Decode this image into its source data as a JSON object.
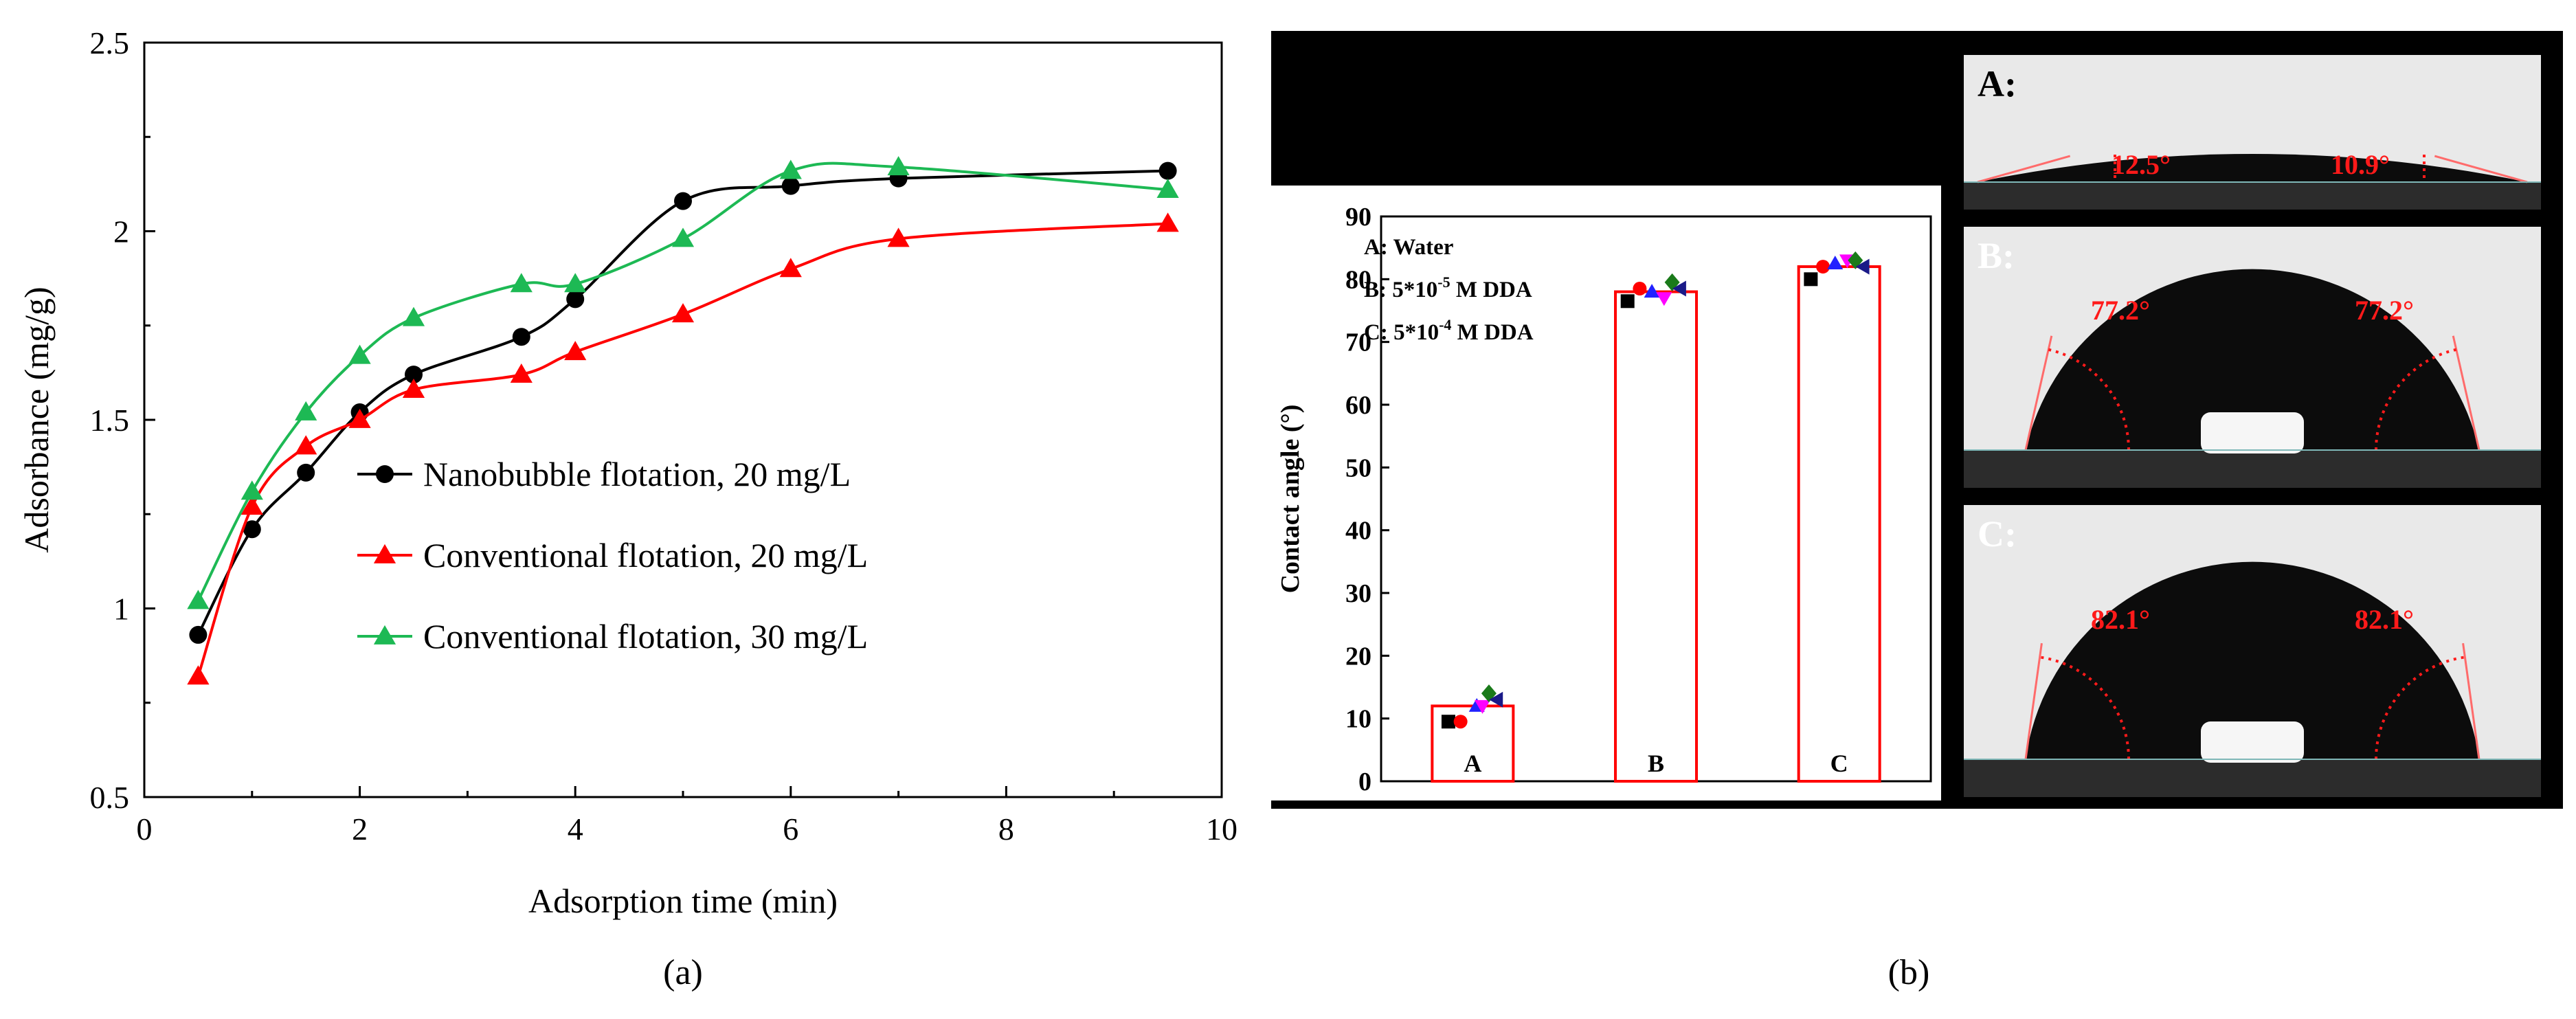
{
  "chart_data": [
    {
      "type": "line",
      "panel_label": "(a)",
      "xlabel": "Adsorption time (min)",
      "ylabel": "Adsorbance  (mg/g)",
      "xlim": [
        0,
        10
      ],
      "ylim": [
        0.5,
        2.5
      ],
      "x_ticks": [
        "0",
        "2",
        "4",
        "6",
        "8",
        "10"
      ],
      "y_ticks": [
        "0.5",
        "1",
        "1.5",
        "2",
        "2.5"
      ],
      "legend_position": "center",
      "series": [
        {
          "name": "Nanobubble flotation, 20 mg/L",
          "color": "#000000",
          "marker": "circle",
          "x": [
            0.5,
            1,
            1.5,
            2,
            2.5,
            3.5,
            4,
            5,
            6,
            7,
            9.5
          ],
          "y": [
            0.93,
            1.21,
            1.36,
            1.52,
            1.62,
            1.72,
            1.82,
            2.08,
            2.12,
            2.14,
            2.16
          ]
        },
        {
          "name": "Conventional flotation, 20 mg/L",
          "color": "#ff0000",
          "marker": "triangle",
          "x": [
            0.5,
            1,
            1.5,
            2,
            2.5,
            3.5,
            4,
            5,
            6,
            7,
            9.5
          ],
          "y": [
            0.82,
            1.27,
            1.43,
            1.5,
            1.58,
            1.62,
            1.68,
            1.78,
            1.9,
            1.98,
            2.02
          ]
        },
        {
          "name": "Conventional flotation, 30 mg/L",
          "color": "#1db954",
          "marker": "triangle",
          "x": [
            0.5,
            1,
            1.5,
            2,
            2.5,
            3.5,
            4,
            5,
            6,
            7,
            9.5
          ],
          "y": [
            1.02,
            1.31,
            1.52,
            1.67,
            1.77,
            1.86,
            1.86,
            1.98,
            2.16,
            2.17,
            2.11
          ]
        }
      ]
    },
    {
      "type": "bar",
      "panel_label": "(b)",
      "ylabel": "Contact angle (°)",
      "ylim": [
        0,
        90
      ],
      "y_ticks": [
        "0",
        "10",
        "20",
        "30",
        "40",
        "50",
        "60",
        "70",
        "80",
        "90"
      ],
      "categories": [
        "A",
        "B",
        "C"
      ],
      "values": [
        12,
        78,
        82
      ],
      "bar_color": "#ff0000",
      "legend": {
        "a": "A: Water",
        "b_prefix": "B: 5*10",
        "b_exp": "-5",
        "b_suffix": " M DDA",
        "c_prefix": "C: 5*10",
        "c_exp": "-4",
        "c_suffix": " M DDA"
      },
      "scatter": [
        {
          "category": "A",
          "points": [
            {
              "shape": "square",
              "color": "#000000",
              "dx": -0.3,
              "y": 9.5
            },
            {
              "shape": "circle",
              "color": "#ff0000",
              "dx": -0.15,
              "y": 9.5
            },
            {
              "shape": "triangle",
              "color": "#2222ff",
              "dx": 0.05,
              "y": 12
            },
            {
              "shape": "triangle-down",
              "color": "#ff00ff",
              "dx": 0.12,
              "y": 12
            },
            {
              "shape": "diamond",
              "color": "#1a7a1a",
              "dx": 0.2,
              "y": 14
            },
            {
              "shape": "triangle-left",
              "color": "#1a1a88",
              "dx": 0.3,
              "y": 13
            }
          ]
        },
        {
          "category": "B",
          "points": [
            {
              "shape": "square",
              "color": "#000000",
              "dx": -0.35,
              "y": 76.5
            },
            {
              "shape": "circle",
              "color": "#ff0000",
              "dx": -0.2,
              "y": 78.5
            },
            {
              "shape": "triangle",
              "color": "#2222ff",
              "dx": -0.05,
              "y": 78
            },
            {
              "shape": "triangle-down",
              "color": "#ff00ff",
              "dx": 0.1,
              "y": 77
            },
            {
              "shape": "diamond",
              "color": "#1a7a1a",
              "dx": 0.2,
              "y": 79.5
            },
            {
              "shape": "triangle-left",
              "color": "#1a1a88",
              "dx": 0.3,
              "y": 78.5
            }
          ]
        },
        {
          "category": "C",
          "points": [
            {
              "shape": "square",
              "color": "#000000",
              "dx": -0.35,
              "y": 80
            },
            {
              "shape": "circle",
              "color": "#ff0000",
              "dx": -0.2,
              "y": 82
            },
            {
              "shape": "triangle",
              "color": "#2222ff",
              "dx": -0.05,
              "y": 82.5
            },
            {
              "shape": "triangle-down",
              "color": "#ff00ff",
              "dx": 0.1,
              "y": 83
            },
            {
              "shape": "diamond",
              "color": "#1a7a1a",
              "dx": 0.2,
              "y": 83
            },
            {
              "shape": "triangle-left",
              "color": "#1a1a88",
              "dx": 0.3,
              "y": 82
            }
          ]
        }
      ]
    }
  ],
  "droplet_images": [
    {
      "label": "A:",
      "left_angle": "12.5°",
      "right_angle": "10.9°",
      "contact_angle": 11.7
    },
    {
      "label": "B:",
      "left_angle": "77.2°",
      "right_angle": "77.2°",
      "contact_angle": 77.2
    },
    {
      "label": "C:",
      "left_angle": "82.1°",
      "right_angle": "82.1°",
      "contact_angle": 82.1
    }
  ]
}
